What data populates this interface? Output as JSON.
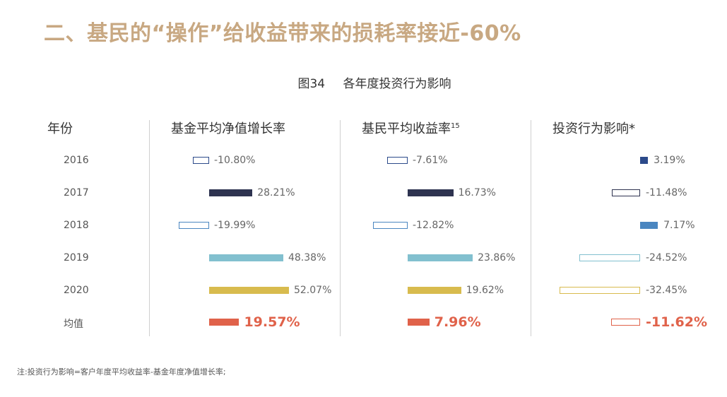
{
  "title": "二、基民的“操作”给收益带来的损耗率接近-60%",
  "figure": {
    "number": "图34",
    "caption": "各年度投资行为影响"
  },
  "footnote": "注:投资行为影响=客户年度平均收益率-基金年度净值增长率;",
  "colors": {
    "negative_outline_2016": "#2c4a8a",
    "year_2017": "#2e3350",
    "year_2018": "#4a86c0",
    "year_2019": "#82c0cf",
    "year_2020": "#d8bb4e",
    "average": "#e0624a"
  },
  "chart_data": {
    "type": "table",
    "columns": {
      "year": "年份",
      "fund_growth": "基金平均净值增长率",
      "investor_return": "基民平均收益率",
      "investor_return_sup": "15",
      "behavior_impact": "投资行为影响*"
    },
    "rows": [
      {
        "year": "2016",
        "fund_growth": -10.8,
        "investor_return": -7.61,
        "behavior_impact": 3.19,
        "labels": {
          "fund_growth": "-10.80%",
          "investor_return": "-7.61%",
          "behavior_impact": "3.19%"
        }
      },
      {
        "year": "2017",
        "fund_growth": 28.21,
        "investor_return": 16.73,
        "behavior_impact": -11.48,
        "labels": {
          "fund_growth": "28.21%",
          "investor_return": "16.73%",
          "behavior_impact": "-11.48%"
        }
      },
      {
        "year": "2018",
        "fund_growth": -19.99,
        "investor_return": -12.82,
        "behavior_impact": 7.17,
        "labels": {
          "fund_growth": "-19.99%",
          "investor_return": "-12.82%",
          "behavior_impact": "7.17%"
        }
      },
      {
        "year": "2019",
        "fund_growth": 48.38,
        "investor_return": 23.86,
        "behavior_impact": -24.52,
        "labels": {
          "fund_growth": "48.38%",
          "investor_return": "23.86%",
          "behavior_impact": "-24.52%"
        }
      },
      {
        "year": "2020",
        "fund_growth": 52.07,
        "investor_return": 19.62,
        "behavior_impact": -32.45,
        "labels": {
          "fund_growth": "52.07%",
          "investor_return": "19.62%",
          "behavior_impact": "-32.45%"
        }
      },
      {
        "year": "均值",
        "fund_growth": 19.57,
        "investor_return": 7.96,
        "behavior_impact": -11.62,
        "labels": {
          "fund_growth": "19.57%",
          "investor_return": "7.96%",
          "behavior_impact": "-11.62%"
        }
      }
    ]
  }
}
